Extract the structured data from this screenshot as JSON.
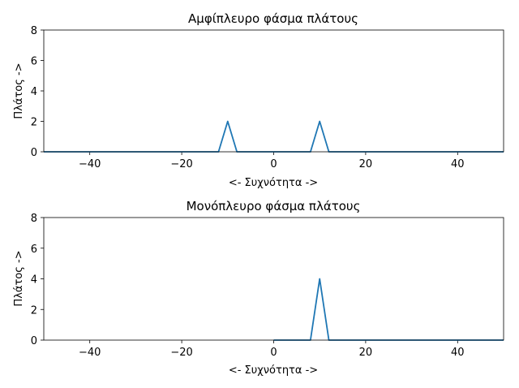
{
  "chart_data": [
    {
      "type": "line",
      "title": "Αμφίπλευρο φάσμα πλάτους",
      "xlabel": "<- Συχνότητα ->",
      "ylabel": "Πλάτος ->",
      "xlim": [
        -50,
        50
      ],
      "ylim": [
        0,
        8
      ],
      "xticks": [
        -40,
        -20,
        0,
        20,
        40
      ],
      "yticks": [
        0,
        2,
        4,
        6,
        8
      ],
      "grid": false,
      "color": "#1f77b4",
      "x": [
        -50,
        -12,
        -10,
        -8,
        8,
        10,
        12,
        50
      ],
      "y": [
        0,
        0,
        2,
        0,
        0,
        2,
        0,
        0
      ]
    },
    {
      "type": "line",
      "title": "Μονόπλευρο φάσμα πλάτους",
      "xlabel": "<- Συχνότητα ->",
      "ylabel": "Πλάτος ->",
      "xlim": [
        -50,
        50
      ],
      "ylim": [
        0,
        8
      ],
      "xticks": [
        -40,
        -20,
        0,
        20,
        40
      ],
      "yticks": [
        0,
        2,
        4,
        6,
        8
      ],
      "grid": false,
      "color": "#1f77b4",
      "x": [
        0,
        8,
        10,
        12,
        50
      ],
      "y": [
        0,
        0,
        4,
        0,
        0
      ]
    }
  ]
}
